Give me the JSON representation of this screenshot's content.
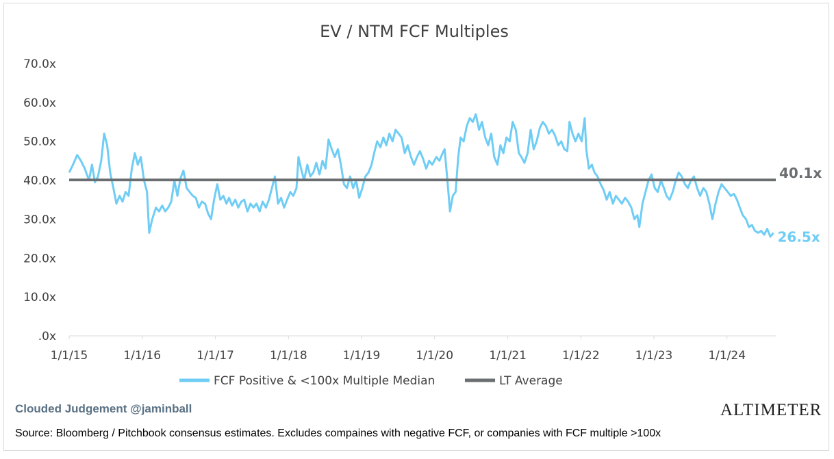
{
  "chart_data": {
    "type": "line",
    "title": "EV / NTM FCF Multiples",
    "y_tick_labels": [
      ".0x",
      "10.0x",
      "20.0x",
      "30.0x",
      "40.0x",
      "50.0x",
      "60.0x",
      "70.0x"
    ],
    "ylim": [
      0,
      70
    ],
    "x_tick_labels": [
      "1/1/15",
      "1/1/16",
      "1/1/17",
      "1/1/18",
      "1/1/19",
      "1/1/20",
      "1/1/21",
      "1/1/22",
      "1/1/23",
      "1/1/24"
    ],
    "xlim": [
      "2015-01-01",
      "2024-09-01"
    ],
    "series": [
      {
        "name": "FCF Positive & <100x Multiple Median",
        "color": "#6fcdf5",
        "end_label": "26.5x",
        "points": [
          [
            "2015-01-01",
            42
          ],
          [
            "2015-01-20",
            44
          ],
          [
            "2015-02-10",
            46.5
          ],
          [
            "2015-03-01",
            45
          ],
          [
            "2015-03-20",
            43
          ],
          [
            "2015-04-10",
            40
          ],
          [
            "2015-04-25",
            44
          ],
          [
            "2015-05-10",
            39.5
          ],
          [
            "2015-05-25",
            41
          ],
          [
            "2015-06-10",
            45
          ],
          [
            "2015-06-25",
            52
          ],
          [
            "2015-07-10",
            49
          ],
          [
            "2015-07-25",
            42
          ],
          [
            "2015-08-10",
            38
          ],
          [
            "2015-08-25",
            34
          ],
          [
            "2015-09-10",
            36
          ],
          [
            "2015-09-25",
            34.5
          ],
          [
            "2015-10-10",
            37
          ],
          [
            "2015-10-25",
            36
          ],
          [
            "2015-11-10",
            43
          ],
          [
            "2015-11-25",
            47
          ],
          [
            "2015-12-10",
            44
          ],
          [
            "2015-12-25",
            46
          ],
          [
            "2016-01-10",
            40
          ],
          [
            "2016-01-25",
            37
          ],
          [
            "2016-02-05",
            26.5
          ],
          [
            "2016-02-20",
            30
          ],
          [
            "2016-03-10",
            33
          ],
          [
            "2016-03-25",
            32
          ],
          [
            "2016-04-10",
            33.5
          ],
          [
            "2016-04-25",
            32
          ],
          [
            "2016-05-10",
            33
          ],
          [
            "2016-05-25",
            34.5
          ],
          [
            "2016-06-10",
            40
          ],
          [
            "2016-06-25",
            36
          ],
          [
            "2016-07-10",
            40.5
          ],
          [
            "2016-07-25",
            42.5
          ],
          [
            "2016-08-10",
            38
          ],
          [
            "2016-08-25",
            37
          ],
          [
            "2016-09-10",
            36
          ],
          [
            "2016-09-25",
            35.5
          ],
          [
            "2016-10-10",
            33
          ],
          [
            "2016-10-25",
            34.5
          ],
          [
            "2016-11-10",
            34
          ],
          [
            "2016-11-25",
            31.5
          ],
          [
            "2016-12-10",
            30
          ],
          [
            "2016-12-25",
            35
          ],
          [
            "2017-01-10",
            39
          ],
          [
            "2017-01-25",
            35
          ],
          [
            "2017-02-10",
            36
          ],
          [
            "2017-02-25",
            34
          ],
          [
            "2017-03-10",
            35.5
          ],
          [
            "2017-03-25",
            33.5
          ],
          [
            "2017-04-10",
            35
          ],
          [
            "2017-04-25",
            33
          ],
          [
            "2017-05-10",
            34.5
          ],
          [
            "2017-05-25",
            35
          ],
          [
            "2017-06-10",
            32
          ],
          [
            "2017-06-25",
            34
          ],
          [
            "2017-07-10",
            33
          ],
          [
            "2017-07-25",
            34
          ],
          [
            "2017-08-10",
            32
          ],
          [
            "2017-08-25",
            34.5
          ],
          [
            "2017-09-10",
            33
          ],
          [
            "2017-09-25",
            35
          ],
          [
            "2017-10-10",
            38
          ],
          [
            "2017-10-25",
            41
          ],
          [
            "2017-11-10",
            34
          ],
          [
            "2017-11-25",
            35.5
          ],
          [
            "2017-12-10",
            33
          ],
          [
            "2017-12-25",
            35
          ],
          [
            "2018-01-10",
            37
          ],
          [
            "2018-01-25",
            36
          ],
          [
            "2018-02-10",
            38
          ],
          [
            "2018-02-20",
            46
          ],
          [
            "2018-03-05",
            43
          ],
          [
            "2018-03-20",
            40
          ],
          [
            "2018-04-05",
            44
          ],
          [
            "2018-04-20",
            41
          ],
          [
            "2018-05-05",
            42
          ],
          [
            "2018-05-20",
            44.5
          ],
          [
            "2018-06-05",
            41.5
          ],
          [
            "2018-06-20",
            45
          ],
          [
            "2018-07-05",
            43
          ],
          [
            "2018-07-20",
            50.5
          ],
          [
            "2018-08-05",
            48
          ],
          [
            "2018-08-20",
            46
          ],
          [
            "2018-09-05",
            48
          ],
          [
            "2018-09-20",
            44
          ],
          [
            "2018-10-05",
            39
          ],
          [
            "2018-10-20",
            38
          ],
          [
            "2018-11-05",
            41
          ],
          [
            "2018-11-20",
            38
          ],
          [
            "2018-12-05",
            40
          ],
          [
            "2018-12-20",
            35.5
          ],
          [
            "2019-01-05",
            38
          ],
          [
            "2019-01-20",
            41
          ],
          [
            "2019-02-05",
            42
          ],
          [
            "2019-02-20",
            44
          ],
          [
            "2019-03-05",
            47
          ],
          [
            "2019-03-20",
            50
          ],
          [
            "2019-04-05",
            48.5
          ],
          [
            "2019-04-20",
            51
          ],
          [
            "2019-05-05",
            49
          ],
          [
            "2019-05-20",
            52
          ],
          [
            "2019-06-05",
            50
          ],
          [
            "2019-06-20",
            53
          ],
          [
            "2019-07-05",
            52
          ],
          [
            "2019-07-20",
            51
          ],
          [
            "2019-08-05",
            47
          ],
          [
            "2019-08-20",
            49
          ],
          [
            "2019-09-05",
            46
          ],
          [
            "2019-09-20",
            44
          ],
          [
            "2019-10-05",
            46
          ],
          [
            "2019-10-20",
            47.5
          ],
          [
            "2019-11-05",
            45.5
          ],
          [
            "2019-11-20",
            43
          ],
          [
            "2019-12-05",
            45
          ],
          [
            "2019-12-20",
            44
          ],
          [
            "2020-01-10",
            46
          ],
          [
            "2020-01-25",
            45
          ],
          [
            "2020-02-10",
            47
          ],
          [
            "2020-02-20",
            48
          ],
          [
            "2020-03-05",
            40
          ],
          [
            "2020-03-18",
            32
          ],
          [
            "2020-04-01",
            36
          ],
          [
            "2020-04-15",
            37
          ],
          [
            "2020-04-28",
            46
          ],
          [
            "2020-05-10",
            51
          ],
          [
            "2020-05-25",
            50
          ],
          [
            "2020-06-10",
            54
          ],
          [
            "2020-06-25",
            56
          ],
          [
            "2020-07-10",
            55
          ],
          [
            "2020-07-25",
            57
          ],
          [
            "2020-08-10",
            53
          ],
          [
            "2020-08-25",
            55
          ],
          [
            "2020-09-10",
            51
          ],
          [
            "2020-09-25",
            49
          ],
          [
            "2020-10-10",
            52
          ],
          [
            "2020-10-25",
            46
          ],
          [
            "2020-11-10",
            44
          ],
          [
            "2020-11-25",
            49
          ],
          [
            "2020-12-10",
            47
          ],
          [
            "2020-12-25",
            51
          ],
          [
            "2021-01-10",
            50
          ],
          [
            "2021-01-25",
            55
          ],
          [
            "2021-02-10",
            53
          ],
          [
            "2021-02-25",
            47
          ],
          [
            "2021-03-10",
            46
          ],
          [
            "2021-03-25",
            44.5
          ],
          [
            "2021-04-10",
            47
          ],
          [
            "2021-04-25",
            53
          ],
          [
            "2021-05-10",
            48
          ],
          [
            "2021-05-25",
            50
          ],
          [
            "2021-06-10",
            53.5
          ],
          [
            "2021-06-25",
            55
          ],
          [
            "2021-07-10",
            54
          ],
          [
            "2021-07-25",
            52
          ],
          [
            "2021-08-10",
            53
          ],
          [
            "2021-08-25",
            51.5
          ],
          [
            "2021-09-10",
            49
          ],
          [
            "2021-09-25",
            50
          ],
          [
            "2021-10-10",
            48
          ],
          [
            "2021-10-25",
            47.5
          ],
          [
            "2021-11-05",
            55
          ],
          [
            "2021-11-20",
            52
          ],
          [
            "2021-12-05",
            50
          ],
          [
            "2021-12-20",
            52
          ],
          [
            "2022-01-05",
            50
          ],
          [
            "2022-01-20",
            56
          ],
          [
            "2022-01-28",
            48
          ],
          [
            "2022-02-10",
            43
          ],
          [
            "2022-02-25",
            44
          ],
          [
            "2022-03-10",
            42
          ],
          [
            "2022-03-25",
            41
          ],
          [
            "2022-04-10",
            39
          ],
          [
            "2022-04-25",
            37.5
          ],
          [
            "2022-05-10",
            35
          ],
          [
            "2022-05-25",
            37
          ],
          [
            "2022-06-10",
            34
          ],
          [
            "2022-06-25",
            36
          ],
          [
            "2022-07-10",
            35
          ],
          [
            "2022-07-25",
            34
          ],
          [
            "2022-08-10",
            35.5
          ],
          [
            "2022-08-25",
            34.5
          ],
          [
            "2022-09-10",
            33
          ],
          [
            "2022-09-25",
            30
          ],
          [
            "2022-10-10",
            31
          ],
          [
            "2022-10-20",
            28
          ],
          [
            "2022-11-05",
            34
          ],
          [
            "2022-11-20",
            37
          ],
          [
            "2022-12-05",
            40
          ],
          [
            "2022-12-20",
            41.5
          ],
          [
            "2023-01-05",
            38
          ],
          [
            "2023-01-20",
            37
          ],
          [
            "2023-02-05",
            40
          ],
          [
            "2023-02-20",
            38
          ],
          [
            "2023-03-05",
            36
          ],
          [
            "2023-03-20",
            35
          ],
          [
            "2023-04-05",
            37
          ],
          [
            "2023-04-20",
            40
          ],
          [
            "2023-05-05",
            42
          ],
          [
            "2023-05-20",
            41
          ],
          [
            "2023-06-05",
            39
          ],
          [
            "2023-06-20",
            38
          ],
          [
            "2023-07-05",
            40
          ],
          [
            "2023-07-20",
            41
          ],
          [
            "2023-08-05",
            38
          ],
          [
            "2023-08-20",
            36
          ],
          [
            "2023-09-05",
            38
          ],
          [
            "2023-09-20",
            37
          ],
          [
            "2023-10-05",
            34
          ],
          [
            "2023-10-20",
            30
          ],
          [
            "2023-11-05",
            34
          ],
          [
            "2023-11-20",
            37
          ],
          [
            "2023-12-05",
            39
          ],
          [
            "2023-12-20",
            38
          ],
          [
            "2024-01-05",
            37
          ],
          [
            "2024-01-20",
            36
          ],
          [
            "2024-02-05",
            36.5
          ],
          [
            "2024-02-20",
            35
          ],
          [
            "2024-03-05",
            33
          ],
          [
            "2024-03-20",
            31
          ],
          [
            "2024-04-05",
            30
          ],
          [
            "2024-04-20",
            28
          ],
          [
            "2024-05-05",
            28.5
          ],
          [
            "2024-05-20",
            27
          ],
          [
            "2024-06-05",
            26.5
          ],
          [
            "2024-06-20",
            27
          ],
          [
            "2024-07-05",
            26
          ],
          [
            "2024-07-20",
            27.5
          ],
          [
            "2024-08-05",
            25.5
          ],
          [
            "2024-08-20",
            26.5
          ]
        ]
      },
      {
        "name": "LT Average",
        "color": "#6b6e70",
        "end_label": "40.1x",
        "value": 40.1
      }
    ],
    "legend_position": "bottom-center",
    "grid": false
  },
  "footer": {
    "watermark": "Clouded Judgement @jaminball",
    "brand": "ALTIMETER",
    "source": "Source: Bloomberg / Pitchbook consensus estimates. Excludes compaines with negative FCF, or companies with FCF multiple >100x"
  }
}
